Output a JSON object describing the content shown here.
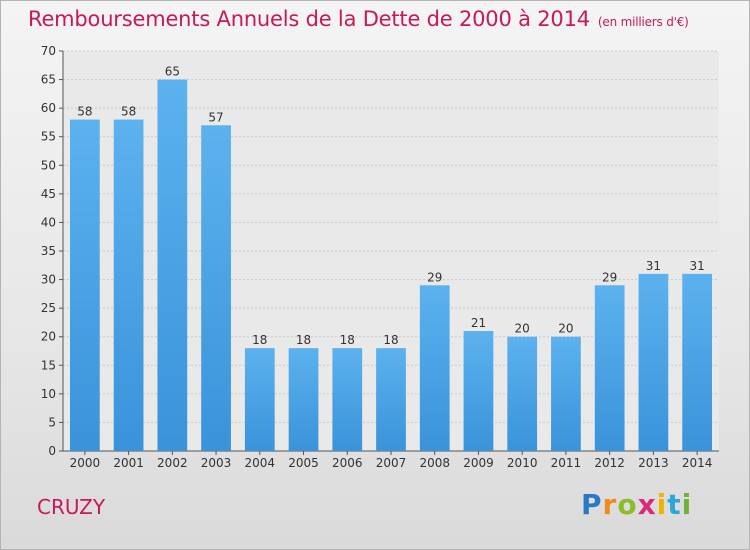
{
  "page": {
    "title": "Remboursements Annuels de la Dette de 2000 à 2014",
    "unit": "(en milliers d'€)",
    "town": "CRUZY",
    "logo": {
      "letters": [
        "P",
        "r",
        "o",
        "x",
        "i",
        "t",
        "i"
      ],
      "colors": [
        "#2a79c4",
        "#f08a1c",
        "#8dbb2b",
        "#d62a7a",
        "#f0b400",
        "#2aa6d8",
        "#6cb43c"
      ]
    }
  },
  "colors": {
    "bar": "#3a93da",
    "bar_light": "#5cb2ee",
    "title": "#c8185a",
    "axis_text": "#333333"
  },
  "chart_data": {
    "type": "bar",
    "categories": [
      "2000",
      "2001",
      "2002",
      "2003",
      "2004",
      "2005",
      "2006",
      "2007",
      "2008",
      "2009",
      "2010",
      "2011",
      "2012",
      "2013",
      "2014"
    ],
    "values": [
      58,
      58,
      65,
      57,
      18,
      18,
      18,
      18,
      29,
      21,
      20,
      20,
      29,
      31,
      31
    ],
    "ylim": [
      0,
      70
    ],
    "yticks": [
      0,
      5,
      10,
      15,
      20,
      25,
      30,
      35,
      40,
      45,
      50,
      55,
      60,
      65,
      70
    ],
    "grid": true,
    "xlabel": "",
    "ylabel": ""
  }
}
